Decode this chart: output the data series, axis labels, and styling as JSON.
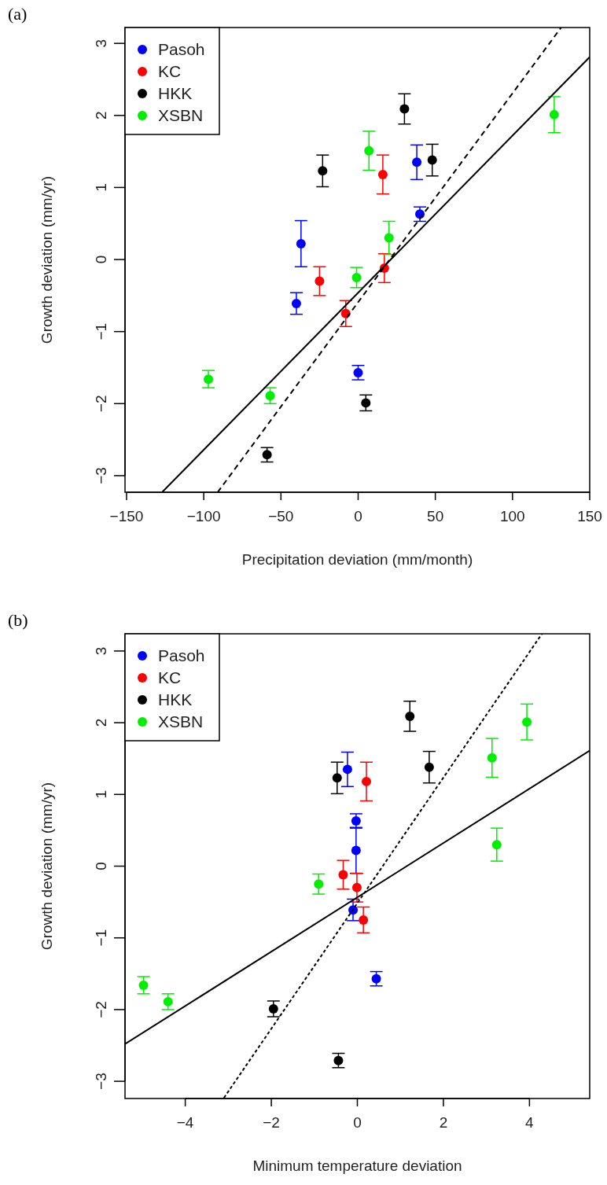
{
  "chart_data": [
    {
      "type": "scatter",
      "title": "(a)",
      "xlabel": "Precipitation deviation (mm/month)",
      "ylabel": "Growth deviation (mm/yr)",
      "xlim": [
        -151,
        150
      ],
      "ylim": [
        -3.23,
        3.22
      ],
      "xticks": [
        -150,
        -100,
        -50,
        0,
        50,
        100,
        150
      ],
      "yticks": [
        -3,
        -2,
        -1,
        0,
        1,
        2,
        3
      ],
      "legend": "top left",
      "grid": false,
      "series": [
        {
          "name": "Pasoh",
          "color": "#0000ff",
          "marker": "circle",
          "x": [
            38,
            40,
            -37,
            -40,
            0
          ],
          "values": [
            1.35,
            0.63,
            0.22,
            -0.61,
            -1.57
          ],
          "errors": [
            0.24,
            0.1,
            0.32,
            0.15,
            0.1
          ]
        },
        {
          "name": "KC",
          "color": "#ff0000",
          "marker": "circle",
          "x": [
            16,
            17,
            -25,
            -8
          ],
          "values": [
            1.18,
            -0.12,
            -0.3,
            -0.75
          ],
          "errors": [
            0.27,
            0.2,
            0.2,
            0.18
          ]
        },
        {
          "name": "HKK",
          "color": "#000000",
          "marker": "circle",
          "x": [
            30,
            48,
            -23,
            5,
            -59
          ],
          "values": [
            2.09,
            1.38,
            1.23,
            -1.99,
            -2.71
          ],
          "errors": [
            0.21,
            0.22,
            0.22,
            0.11,
            0.1
          ]
        },
        {
          "name": "XSBN",
          "color": "#00ee00",
          "marker": "circle",
          "x": [
            127,
            7,
            20,
            -1,
            -97,
            -57
          ],
          "values": [
            2.01,
            1.51,
            0.3,
            -0.25,
            -1.66,
            -1.89
          ],
          "errors": [
            0.25,
            0.27,
            0.23,
            0.14,
            0.12,
            0.11
          ]
        },
        {
          "type": "line",
          "color": "#000000",
          "marker": "none",
          "line_style": "solid",
          "x": [
            -127,
            150
          ],
          "values": [
            -3.23,
            2.81
          ]
        },
        {
          "type": "line",
          "color": "#000000",
          "marker": "none",
          "line_style": "dashed",
          "x": [
            -91,
            131.5
          ],
          "values": [
            -3.23,
            3.22
          ]
        }
      ]
    },
    {
      "type": "scatter",
      "title": "(b)",
      "xlabel": "Minimum temperature deviation",
      "ylabel": "Growth deviation (mm/yr)",
      "xlim": [
        -5.4,
        5.4
      ],
      "ylim": [
        -3.24,
        3.24
      ],
      "xticks": [
        -4,
        -2,
        0,
        2,
        4
      ],
      "yticks": [
        -3,
        -2,
        -1,
        0,
        1,
        2,
        3
      ],
      "legend": "top left",
      "grid": false,
      "series": [
        {
          "name": "Pasoh",
          "color": "#0000ff",
          "marker": "circle",
          "x": [
            -0.23,
            -0.03,
            -0.03,
            -0.1,
            0.44
          ],
          "values": [
            1.35,
            0.63,
            0.22,
            -0.61,
            -1.57
          ],
          "errors": [
            0.24,
            0.1,
            0.32,
            0.15,
            0.1
          ]
        },
        {
          "name": "KC",
          "color": "#ff0000",
          "marker": "circle",
          "x": [
            0.21,
            -0.33,
            -0.01,
            0.14
          ],
          "values": [
            1.18,
            -0.12,
            -0.3,
            -0.75
          ],
          "errors": [
            0.27,
            0.2,
            0.2,
            0.18
          ]
        },
        {
          "name": "HKK",
          "color": "#000000",
          "marker": "circle",
          "x": [
            1.22,
            1.67,
            -0.47,
            -1.95,
            -0.44
          ],
          "values": [
            2.09,
            1.38,
            1.23,
            -1.99,
            -2.71
          ],
          "errors": [
            0.21,
            0.22,
            0.22,
            0.11,
            0.1
          ]
        },
        {
          "name": "XSBN",
          "color": "#00ee00",
          "marker": "circle",
          "x": [
            3.94,
            3.13,
            3.24,
            -0.9,
            -4.97,
            -4.4
          ],
          "values": [
            2.01,
            1.51,
            0.3,
            -0.25,
            -1.66,
            -1.89
          ],
          "errors": [
            0.25,
            0.27,
            0.23,
            0.14,
            0.12,
            0.11
          ]
        },
        {
          "type": "line",
          "color": "#000000",
          "marker": "none",
          "line_style": "solid",
          "x": [
            -5.4,
            5.4
          ],
          "values": [
            -2.48,
            1.61
          ]
        },
        {
          "type": "line",
          "color": "#000000",
          "marker": "none",
          "line_style": "dotted",
          "x": [
            -3.1,
            4.29
          ],
          "values": [
            -3.23,
            3.24
          ]
        }
      ]
    }
  ]
}
